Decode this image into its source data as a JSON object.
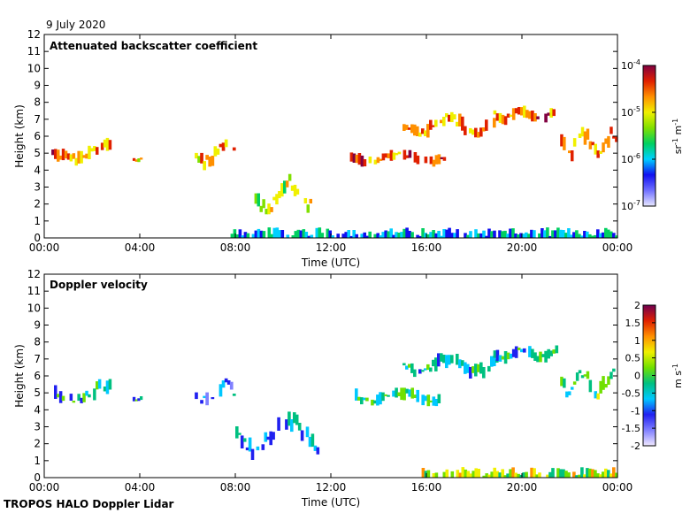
{
  "date_label": "9 July 2020",
  "footer_label": "TROPOS HALO Doppler Lidar",
  "colors": {
    "backscatter_scale": [
      "#e8e8ff",
      "#7070ff",
      "#1010f0",
      "#00d0ff",
      "#00d060",
      "#80e000",
      "#f0f000",
      "#ff9000",
      "#e02000",
      "#800040"
    ],
    "velocity_scale": [
      "#f0e8ff",
      "#8080ff",
      "#2020f0",
      "#00c8ff",
      "#00c080",
      "#70e000",
      "#f0f000",
      "#ff9000",
      "#e02000",
      "#700050"
    ],
    "near_ground_layer": "#20a0a0"
  },
  "chart_data": [
    {
      "type": "heatmap",
      "title": "Attenuated backscatter coefficient",
      "xlabel": "Time (UTC)",
      "ylabel": "Height (km)",
      "xlim": [
        0,
        24
      ],
      "ylim": [
        0,
        12
      ],
      "x_ticks": [
        "00:00",
        "04:00",
        "08:00",
        "12:00",
        "16:00",
        "20:00",
        "00:00"
      ],
      "y_ticks": [
        "0",
        "1",
        "2",
        "3",
        "4",
        "5",
        "6",
        "7",
        "8",
        "9",
        "10",
        "11",
        "12"
      ],
      "colorbar": {
        "label_parts": [
          "sr",
          "-1",
          " m",
          "-1"
        ],
        "scale": "log",
        "range": [
          1e-07,
          0.0001
        ],
        "ticks": [
          {
            "value": 0.0001,
            "base": "10",
            "exp": "-4"
          },
          {
            "value": 1e-05,
            "base": "10",
            "exp": "-5"
          },
          {
            "value": 1e-06,
            "base": "10",
            "exp": "-6"
          },
          {
            "value": 1e-07,
            "base": "10",
            "exp": "-7"
          }
        ]
      },
      "features": [
        {
          "t": [
            0.3,
            2.8
          ],
          "h_km": [
            3.8,
            6.0
          ],
          "level": 0.78
        },
        {
          "t": [
            3.7,
            4.1
          ],
          "h_km": [
            4.4,
            4.8
          ],
          "level": 0.72
        },
        {
          "t": [
            6.3,
            8.0
          ],
          "h_km": [
            3.5,
            6.0
          ],
          "level": 0.72
        },
        {
          "t": [
            8.8,
            11.2
          ],
          "h_km": [
            0.2,
            4.0
          ],
          "level": 0.62
        },
        {
          "t": [
            7.8,
            24.0
          ],
          "h_km": [
            0.0,
            0.7
          ],
          "level": 0.35
        },
        {
          "t": [
            12.8,
            16.8
          ],
          "h_km": [
            4.0,
            5.2
          ],
          "level": 0.8
        },
        {
          "t": [
            15.0,
            19.0
          ],
          "h_km": [
            5.4,
            7.5
          ],
          "level": 0.75
        },
        {
          "t": [
            18.8,
            21.5
          ],
          "h_km": [
            6.5,
            7.8
          ],
          "level": 0.78
        },
        {
          "t": [
            21.6,
            24.0
          ],
          "h_km": [
            3.8,
            6.8
          ],
          "level": 0.76
        }
      ]
    },
    {
      "type": "heatmap",
      "title": "Doppler velocity",
      "xlabel": "Time (UTC)",
      "ylabel": "Height (km)",
      "xlim": [
        0,
        24
      ],
      "ylim": [
        0,
        12
      ],
      "x_ticks": [
        "00:00",
        "04:00",
        "08:00",
        "12:00",
        "16:00",
        "20:00",
        "00:00"
      ],
      "y_ticks": [
        "0",
        "1",
        "2",
        "3",
        "4",
        "5",
        "6",
        "7",
        "8",
        "9",
        "10",
        "11",
        "12"
      ],
      "colorbar": {
        "label_parts": [
          "m s",
          "-1"
        ],
        "scale": "linear",
        "range": [
          -2,
          2
        ],
        "ticks": [
          {
            "value": 2,
            "base": "2"
          },
          {
            "value": 1.5,
            "base": "1.5"
          },
          {
            "value": 1,
            "base": "1"
          },
          {
            "value": 0.5,
            "base": "0.5"
          },
          {
            "value": 0,
            "base": "0"
          },
          {
            "value": -0.5,
            "base": "-0.5"
          },
          {
            "value": -1,
            "base": "-1"
          },
          {
            "value": -1.5,
            "base": "-1.5"
          },
          {
            "value": -2,
            "base": "-2"
          }
        ]
      },
      "features": [
        {
          "t": [
            0.3,
            2.8
          ],
          "h_km": [
            3.6,
            6.0
          ],
          "level": 0.4
        },
        {
          "t": [
            3.7,
            4.1
          ],
          "h_km": [
            4.4,
            4.8
          ],
          "level": 0.38
        },
        {
          "t": [
            6.3,
            8.0
          ],
          "h_km": [
            3.5,
            6.0
          ],
          "level": 0.3
        },
        {
          "t": [
            8.0,
            11.5
          ],
          "h_km": [
            0.2,
            4.0
          ],
          "level": 0.32
        },
        {
          "t": [
            15.8,
            24.0
          ],
          "h_km": [
            0.0,
            1.0
          ],
          "level": 0.58
        },
        {
          "t": [
            13.0,
            16.8
          ],
          "h_km": [
            4.0,
            5.3
          ],
          "level": 0.45
        },
        {
          "t": [
            15.0,
            19.0
          ],
          "h_km": [
            5.5,
            7.4
          ],
          "level": 0.4
        },
        {
          "t": [
            18.8,
            21.5
          ],
          "h_km": [
            6.5,
            7.8
          ],
          "level": 0.42
        },
        {
          "t": [
            21.6,
            24.0
          ],
          "h_km": [
            3.8,
            6.8
          ],
          "level": 0.48
        }
      ]
    }
  ]
}
